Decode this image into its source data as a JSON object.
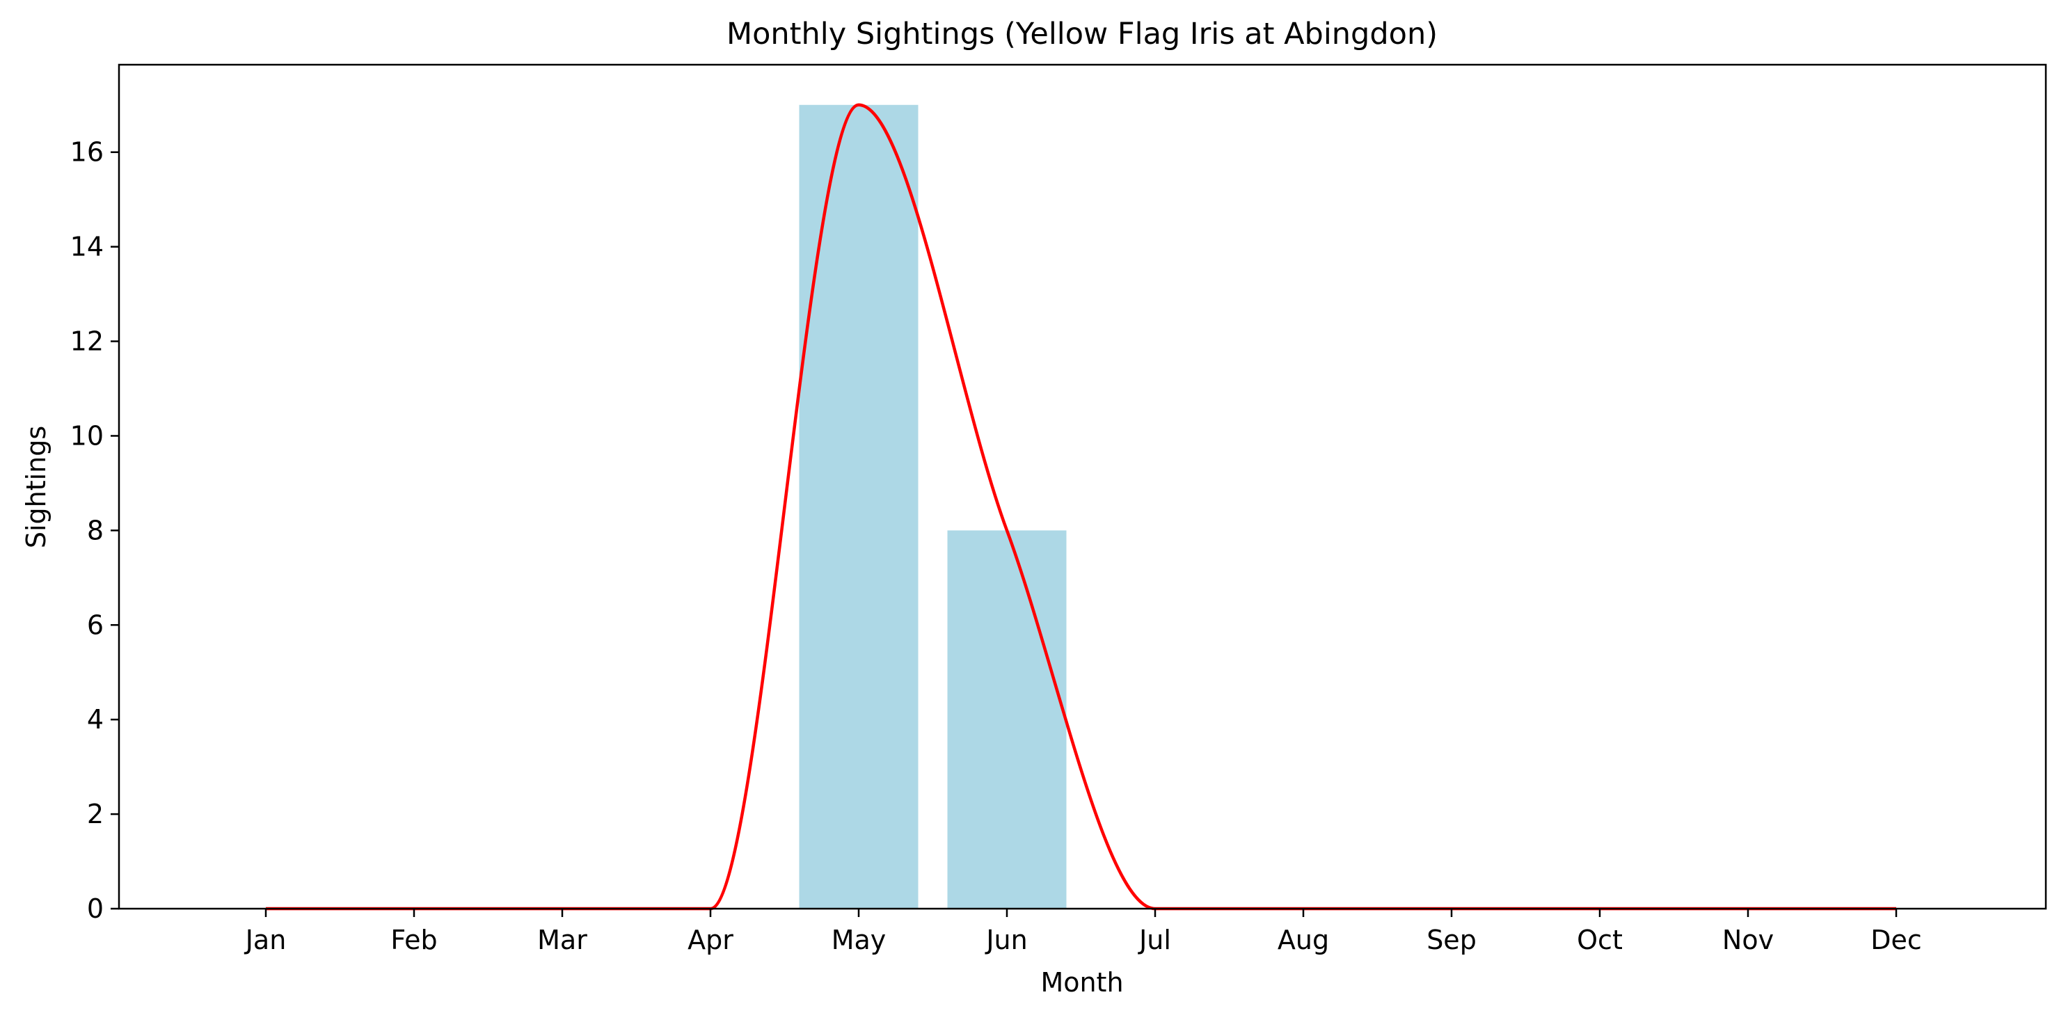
{
  "chart_data": {
    "type": "bar",
    "title": "Monthly Sightings (Yellow Flag Iris at Abingdon)",
    "xlabel": "Month",
    "ylabel": "Sightings",
    "categories": [
      "Jan",
      "Feb",
      "Mar",
      "Apr",
      "May",
      "Jun",
      "Jul",
      "Aug",
      "Sep",
      "Oct",
      "Nov",
      "Dec"
    ],
    "values": [
      0,
      0,
      0,
      0,
      17,
      8,
      0,
      0,
      0,
      0,
      0,
      0
    ],
    "ylim": [
      0,
      17.85
    ],
    "yticks": [
      "0",
      "2",
      "4",
      "6",
      "8",
      "10",
      "12",
      "14",
      "16"
    ],
    "grid": false,
    "legend": "none",
    "overlay": {
      "type": "line",
      "style": "smooth curve through monthly values",
      "color": "#ff0000"
    },
    "colors": {
      "bar": "#add8e6",
      "line": "#ff0000",
      "axis": "#000000"
    }
  }
}
